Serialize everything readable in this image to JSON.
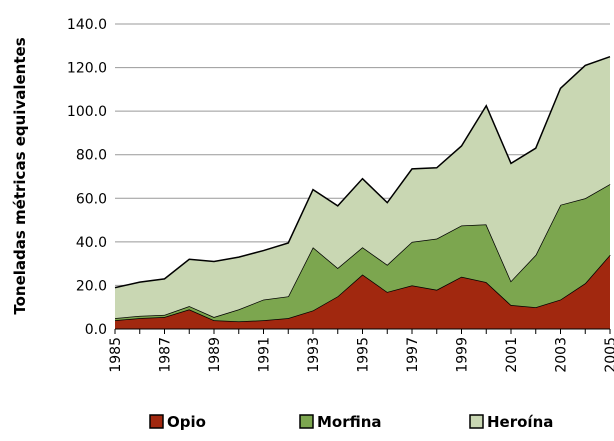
{
  "chart_data": {
    "type": "stacked_area",
    "y_label": "Toneladas métricas equivalentes",
    "categories": [
      "1985",
      null,
      "1987",
      null,
      "1989",
      null,
      "1991",
      null,
      "1993",
      null,
      "1995",
      null,
      "1997",
      null,
      "1999",
      null,
      "2001",
      null,
      "2003",
      null,
      "2005"
    ],
    "series": [
      {
        "name": "Opio",
        "color": "#a1280f",
        "values": [
          4,
          5,
          5.5,
          9,
          4,
          3.5,
          4,
          5,
          8.5,
          15,
          25,
          17,
          20,
          18,
          24,
          21.5,
          11,
          10,
          13.5,
          21,
          34
        ]
      },
      {
        "name": "Morfina",
        "color": "#7ca64f",
        "values": [
          1,
          1,
          1,
          1.5,
          1.5,
          5.5,
          9.5,
          10,
          29,
          13,
          12.5,
          12.5,
          20,
          23.5,
          23.5,
          26.5,
          11,
          24,
          43.5,
          39,
          32.5
        ]
      },
      {
        "name": "Heroína",
        "color": "#c9d7b3",
        "values": [
          14,
          15.5,
          16.5,
          21.5,
          25.5,
          24,
          22.5,
          24.5,
          26.5,
          28.5,
          31.5,
          28.5,
          33.5,
          32.5,
          36.5,
          54.5,
          54,
          49,
          53.5,
          61,
          58.5
        ]
      }
    ],
    "ylim": [
      0,
      140
    ],
    "yticks": [
      {
        "value": 0,
        "label": "0.0"
      },
      {
        "value": 20,
        "label": "20.0"
      },
      {
        "value": 40,
        "label": "40.0"
      },
      {
        "value": 60,
        "label": "60.0"
      },
      {
        "value": 80,
        "label": "80.0"
      },
      {
        "value": 100,
        "label": "100.0"
      },
      {
        "value": 120,
        "label": "120.0"
      },
      {
        "value": 140,
        "label": "140.0"
      }
    ],
    "grid": true,
    "legend": "bottom"
  }
}
